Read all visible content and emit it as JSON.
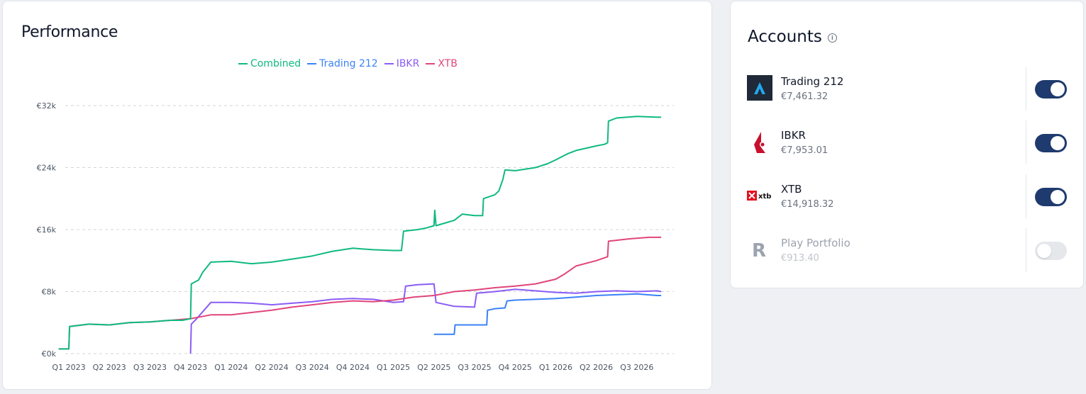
{
  "performance": {
    "title": "Performance"
  },
  "chart_data": {
    "type": "line",
    "title": "Performance",
    "xlabel": "",
    "ylabel": "",
    "x_ticks": [
      "Q1 2023",
      "Q2 2023",
      "Q3 2023",
      "Q4 2023",
      "Q1 2024",
      "Q2 2024",
      "Q3 2024",
      "Q4 2024",
      "Q1 2025",
      "Q2 2025",
      "Q3 2025",
      "Q4 2025",
      "Q1 2026",
      "Q2 2026",
      "Q3 2026"
    ],
    "y_ticks": [
      "€0k",
      "€8k",
      "€16k",
      "€24k",
      "€32k"
    ],
    "y_tick_values": [
      0,
      8000,
      16000,
      24000,
      32000
    ],
    "ylim": [
      0,
      32000
    ],
    "xlim": [
      -0.25,
      14.6
    ],
    "grid": true,
    "legend_position": "top-center",
    "series": [
      {
        "name": "Combined",
        "color": "#10b981",
        "points": [
          [
            -0.25,
            600
          ],
          [
            0.0,
            600
          ],
          [
            0.02,
            3500
          ],
          [
            0.5,
            3800
          ],
          [
            1.0,
            3700
          ],
          [
            1.5,
            4000
          ],
          [
            2.0,
            4100
          ],
          [
            2.5,
            4300
          ],
          [
            2.8,
            4300
          ],
          [
            3.0,
            4500
          ],
          [
            3.02,
            9000
          ],
          [
            3.2,
            9500
          ],
          [
            3.3,
            10500
          ],
          [
            3.5,
            11800
          ],
          [
            4.0,
            11900
          ],
          [
            4.5,
            11600
          ],
          [
            5.0,
            11800
          ],
          [
            5.5,
            12200
          ],
          [
            6.0,
            12600
          ],
          [
            6.5,
            13200
          ],
          [
            7.0,
            13600
          ],
          [
            7.5,
            13400
          ],
          [
            8.0,
            13300
          ],
          [
            8.2,
            13300
          ],
          [
            8.25,
            15800
          ],
          [
            8.6,
            16000
          ],
          [
            8.8,
            16200
          ],
          [
            9.0,
            16500
          ],
          [
            9.02,
            18500
          ],
          [
            9.05,
            16500
          ],
          [
            9.5,
            17200
          ],
          [
            9.7,
            18000
          ],
          [
            10.0,
            17800
          ],
          [
            10.2,
            17800
          ],
          [
            10.22,
            20000
          ],
          [
            10.5,
            20500
          ],
          [
            10.6,
            21000
          ],
          [
            10.7,
            22500
          ],
          [
            10.75,
            23700
          ],
          [
            11.0,
            23600
          ],
          [
            11.5,
            24000
          ],
          [
            11.8,
            24500
          ],
          [
            12.0,
            25000
          ],
          [
            12.3,
            25800
          ],
          [
            12.5,
            26200
          ],
          [
            13.0,
            26800
          ],
          [
            13.2,
            27000
          ],
          [
            13.28,
            27200
          ],
          [
            13.3,
            30000
          ],
          [
            13.5,
            30400
          ],
          [
            14.0,
            30600
          ],
          [
            14.5,
            30500
          ],
          [
            14.6,
            30500
          ]
        ]
      },
      {
        "name": "Trading 212",
        "color": "#3b82f6",
        "points": [
          [
            9.0,
            2500
          ],
          [
            9.5,
            2500
          ],
          [
            9.52,
            3700
          ],
          [
            10.0,
            3700
          ],
          [
            10.3,
            3700
          ],
          [
            10.32,
            5600
          ],
          [
            10.5,
            5800
          ],
          [
            10.75,
            5900
          ],
          [
            10.8,
            6800
          ],
          [
            11.0,
            6900
          ],
          [
            11.5,
            7000
          ],
          [
            12.0,
            7100
          ],
          [
            12.5,
            7300
          ],
          [
            13.0,
            7500
          ],
          [
            13.5,
            7600
          ],
          [
            14.0,
            7700
          ],
          [
            14.5,
            7500
          ],
          [
            14.6,
            7500
          ]
        ]
      },
      {
        "name": "IBKR",
        "color": "#8b5cf6",
        "points": [
          [
            3.0,
            0
          ],
          [
            3.02,
            3800
          ],
          [
            3.15,
            4500
          ],
          [
            3.5,
            6600
          ],
          [
            4.0,
            6600
          ],
          [
            4.5,
            6500
          ],
          [
            5.0,
            6300
          ],
          [
            5.5,
            6500
          ],
          [
            6.0,
            6700
          ],
          [
            6.5,
            7000
          ],
          [
            7.0,
            7100
          ],
          [
            7.5,
            7000
          ],
          [
            8.0,
            6600
          ],
          [
            8.25,
            6700
          ],
          [
            8.3,
            8700
          ],
          [
            8.6,
            8900
          ],
          [
            9.0,
            9000
          ],
          [
            9.05,
            6600
          ],
          [
            9.5,
            6100
          ],
          [
            10.0,
            6000
          ],
          [
            10.05,
            7800
          ],
          [
            10.5,
            8000
          ],
          [
            11.0,
            8300
          ],
          [
            11.5,
            8100
          ],
          [
            12.0,
            7900
          ],
          [
            12.5,
            7800
          ],
          [
            13.0,
            8000
          ],
          [
            13.5,
            8100
          ],
          [
            14.0,
            8000
          ],
          [
            14.5,
            8100
          ],
          [
            14.6,
            8000
          ]
        ]
      },
      {
        "name": "XTB",
        "color": "#e0457b",
        "points": [
          [
            -0.25,
            600
          ],
          [
            0.0,
            600
          ],
          [
            0.02,
            3500
          ],
          [
            0.5,
            3800
          ],
          [
            1.0,
            3700
          ],
          [
            1.5,
            4000
          ],
          [
            2.0,
            4100
          ],
          [
            2.5,
            4300
          ],
          [
            3.0,
            4500
          ],
          [
            3.5,
            5000
          ],
          [
            4.0,
            5000
          ],
          [
            4.5,
            5300
          ],
          [
            5.0,
            5600
          ],
          [
            5.5,
            6000
          ],
          [
            6.0,
            6300
          ],
          [
            6.5,
            6600
          ],
          [
            7.0,
            6800
          ],
          [
            7.5,
            6700
          ],
          [
            8.0,
            6900
          ],
          [
            8.5,
            7300
          ],
          [
            9.0,
            7500
          ],
          [
            9.5,
            8000
          ],
          [
            10.0,
            8200
          ],
          [
            10.5,
            8500
          ],
          [
            11.0,
            8700
          ],
          [
            11.5,
            9000
          ],
          [
            12.0,
            9600
          ],
          [
            12.2,
            10200
          ],
          [
            12.5,
            11300
          ],
          [
            13.0,
            12000
          ],
          [
            13.28,
            12500
          ],
          [
            13.3,
            14500
          ],
          [
            13.8,
            14800
          ],
          [
            14.3,
            15000
          ],
          [
            14.6,
            15000
          ]
        ]
      }
    ]
  },
  "accounts": {
    "title": "Accounts",
    "info_icon": "info-icon",
    "items": [
      {
        "name": "Trading 212",
        "value": "€7,461.32",
        "enabled": true,
        "logo": "trading212-logo",
        "logo_text": ""
      },
      {
        "name": "IBKR",
        "value": "€7,953.01",
        "enabled": true,
        "logo": "ibkr-logo",
        "logo_text": ""
      },
      {
        "name": "XTB",
        "value": "€14,918.32",
        "enabled": true,
        "logo": "xtb-logo",
        "logo_text": "xtb"
      },
      {
        "name": "Play Portfolio",
        "value": "€913.40",
        "enabled": false,
        "logo": "revolut-logo",
        "logo_text": "R"
      }
    ]
  }
}
